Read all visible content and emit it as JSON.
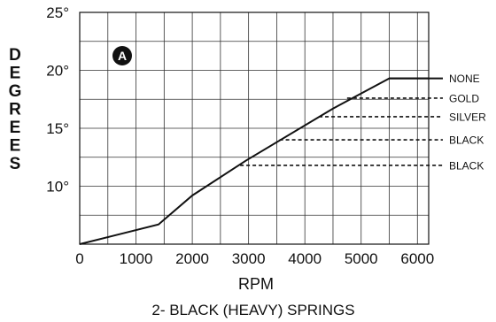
{
  "chart_data": {
    "type": "line",
    "x": [
      0,
      1400,
      2000,
      2950,
      4500,
      5500,
      6200
    ],
    "y": [
      5,
      6.7,
      9.2,
      12.2,
      16.7,
      19.3,
      19.3
    ],
    "xlim": [
      0,
      6200
    ],
    "ylim": [
      5,
      25
    ],
    "x_ticks": [
      0,
      1000,
      2000,
      3000,
      4000,
      5000,
      6000
    ],
    "x_tick_labels": [
      "0",
      "1000",
      "2000",
      "3000",
      "4000",
      "5000",
      "6000"
    ],
    "y_ticks": [
      10,
      15,
      20,
      25
    ],
    "y_tick_labels": [
      "10°",
      "15°",
      "20°",
      "25°"
    ],
    "grid": true,
    "grid_x_step": 500,
    "grid_y_step": 2.5,
    "xlabel": "RPM",
    "ylabel": "DEGREES",
    "subtitle": "2- BLACK (HEAVY) SPRINGS",
    "badge": "A",
    "spring_lines": [
      {
        "label": "NONE",
        "y": 19.3,
        "x_start": 5500,
        "style": "solid"
      },
      {
        "label": "GOLD",
        "y": 17.6,
        "x_start": 4750,
        "style": "dashed"
      },
      {
        "label": "SILVER",
        "y": 16.0,
        "x_start": 4250,
        "style": "dashed"
      },
      {
        "label": "BLACK",
        "y": 14.0,
        "x_start": 3550,
        "style": "dashed"
      },
      {
        "label": "BLACK",
        "y": 11.8,
        "x_start": 2850,
        "style": "dashed"
      }
    ]
  }
}
